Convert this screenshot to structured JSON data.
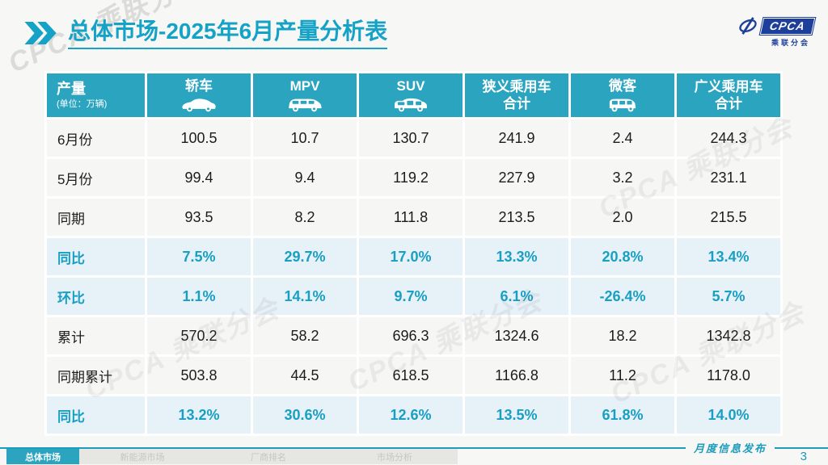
{
  "header": {
    "title": "总体市场-2025年6月产量分析表"
  },
  "logo": {
    "text": "CPCA",
    "subtext": "乘联分会"
  },
  "watermark": "CPCA 乘联分会",
  "colors": {
    "accent": "#14a3c6",
    "table_header_bg": "#2ba4bf",
    "percent_row_bg": "#e7f1f8",
    "percent_text": "#189fc4",
    "logo_blue": "#1d3e9a"
  },
  "chart_data": {
    "type": "table",
    "title": "总体市场-2025年6月产量分析表",
    "unit_label": "产量",
    "unit_note": "(单位：万辆)",
    "columns": [
      {
        "label": "轿车",
        "icon": "sedan-icon"
      },
      {
        "label": "MPV",
        "icon": "mpv-icon"
      },
      {
        "label": "SUV",
        "icon": "suv-icon"
      },
      {
        "label": "狭义乘用车",
        "label2": "合计",
        "icon": ""
      },
      {
        "label": "微客",
        "icon": "microvan-icon"
      },
      {
        "label": "广义乘用车",
        "label2": "合计",
        "icon": ""
      }
    ],
    "rows": [
      {
        "label": "6月份",
        "style": "normal",
        "values": [
          "100.5",
          "10.7",
          "130.7",
          "241.9",
          "2.4",
          "244.3"
        ]
      },
      {
        "label": "5月份",
        "style": "normal",
        "values": [
          "99.4",
          "9.4",
          "119.2",
          "227.9",
          "3.2",
          "231.1"
        ]
      },
      {
        "label": "同期",
        "style": "normal",
        "values": [
          "93.5",
          "8.2",
          "111.8",
          "213.5",
          "2.0",
          "215.5"
        ]
      },
      {
        "label": "同比",
        "style": "percent",
        "values": [
          "7.5%",
          "29.7%",
          "17.0%",
          "13.3%",
          "20.8%",
          "13.4%"
        ]
      },
      {
        "label": "环比",
        "style": "percent",
        "values": [
          "1.1%",
          "14.1%",
          "9.7%",
          "6.1%",
          "-26.4%",
          "5.7%"
        ]
      },
      {
        "label": "累计",
        "style": "normal",
        "values": [
          "570.2",
          "58.2",
          "696.3",
          "1324.6",
          "18.2",
          "1342.8"
        ]
      },
      {
        "label": "同期累计",
        "style": "normal",
        "values": [
          "503.8",
          "44.5",
          "618.5",
          "1166.8",
          "11.2",
          "1178.0"
        ]
      },
      {
        "label": "同比",
        "style": "percent",
        "values": [
          "13.2%",
          "30.6%",
          "12.6%",
          "13.5%",
          "61.8%",
          "14.0%"
        ]
      }
    ]
  },
  "footer": {
    "tabs": [
      {
        "label": "总体市场",
        "active": true
      },
      {
        "label": "新能源市场",
        "active": false
      },
      {
        "label": "厂商排名",
        "active": false
      },
      {
        "label": "市场分析",
        "active": false
      }
    ],
    "release_label": "月度信息发布",
    "page_number": "3"
  }
}
